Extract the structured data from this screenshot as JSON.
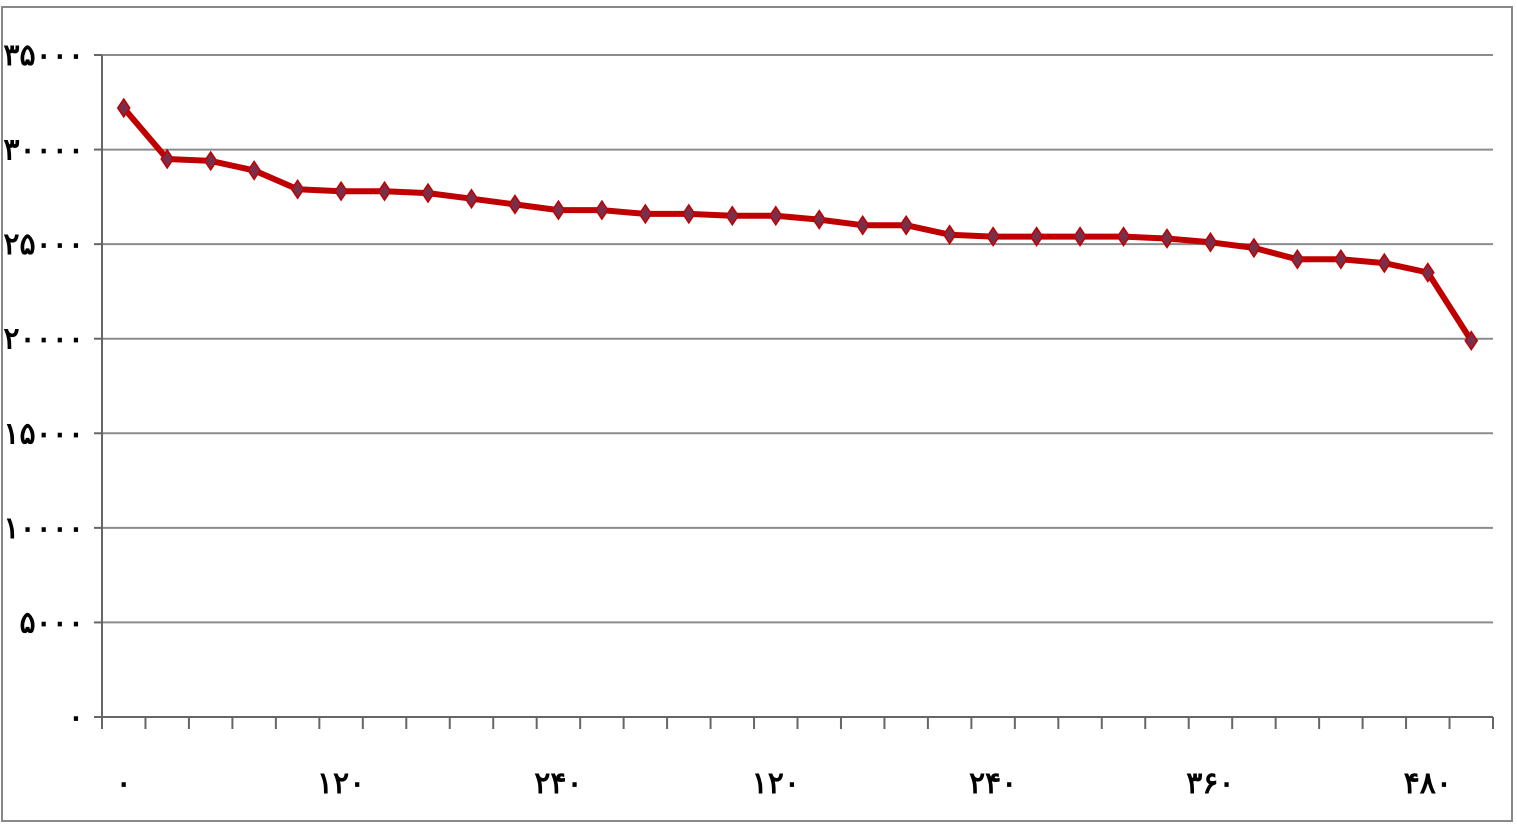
{
  "chart_data": {
    "type": "line",
    "title": "",
    "xlabel": "",
    "ylabel": "",
    "ylim": [
      0,
      35000
    ],
    "yticks": [
      {
        "value": 0,
        "label": "۰"
      },
      {
        "value": 5000,
        "label": "۵۰۰۰"
      },
      {
        "value": 10000,
        "label": "۱۰۰۰۰"
      },
      {
        "value": 15000,
        "label": "۱۵۰۰۰"
      },
      {
        "value": 20000,
        "label": "۲۰۰۰۰"
      },
      {
        "value": 25000,
        "label": "۲۵۰۰۰"
      },
      {
        "value": 30000,
        "label": "۳۰۰۰۰"
      },
      {
        "value": 35000,
        "label": "۳۵۰۰۰"
      }
    ],
    "category_count": 32,
    "x_tick_labels": [
      {
        "index": 0,
        "label": "۰"
      },
      {
        "index": 5,
        "label": "۱۲۰"
      },
      {
        "index": 10,
        "label": "۲۴۰"
      },
      {
        "index": 15,
        "label": "۱۲۰"
      },
      {
        "index": 20,
        "label": "۲۴۰"
      },
      {
        "index": 25,
        "label": "۳۶۰"
      },
      {
        "index": 30,
        "label": "۴۸۰"
      }
    ],
    "grid": true,
    "legend": "none",
    "series": [
      {
        "color": "#c00000",
        "marker_color": "#7a2e4a",
        "values": [
          32200,
          29500,
          29400,
          28900,
          27900,
          27800,
          27800,
          27700,
          27400,
          27100,
          26800,
          26800,
          26600,
          26600,
          26500,
          26500,
          26300,
          26000,
          26000,
          25500,
          25400,
          25400,
          25400,
          25400,
          25300,
          25100,
          24800,
          24200,
          24200,
          24000,
          23500,
          19900
        ]
      }
    ]
  }
}
